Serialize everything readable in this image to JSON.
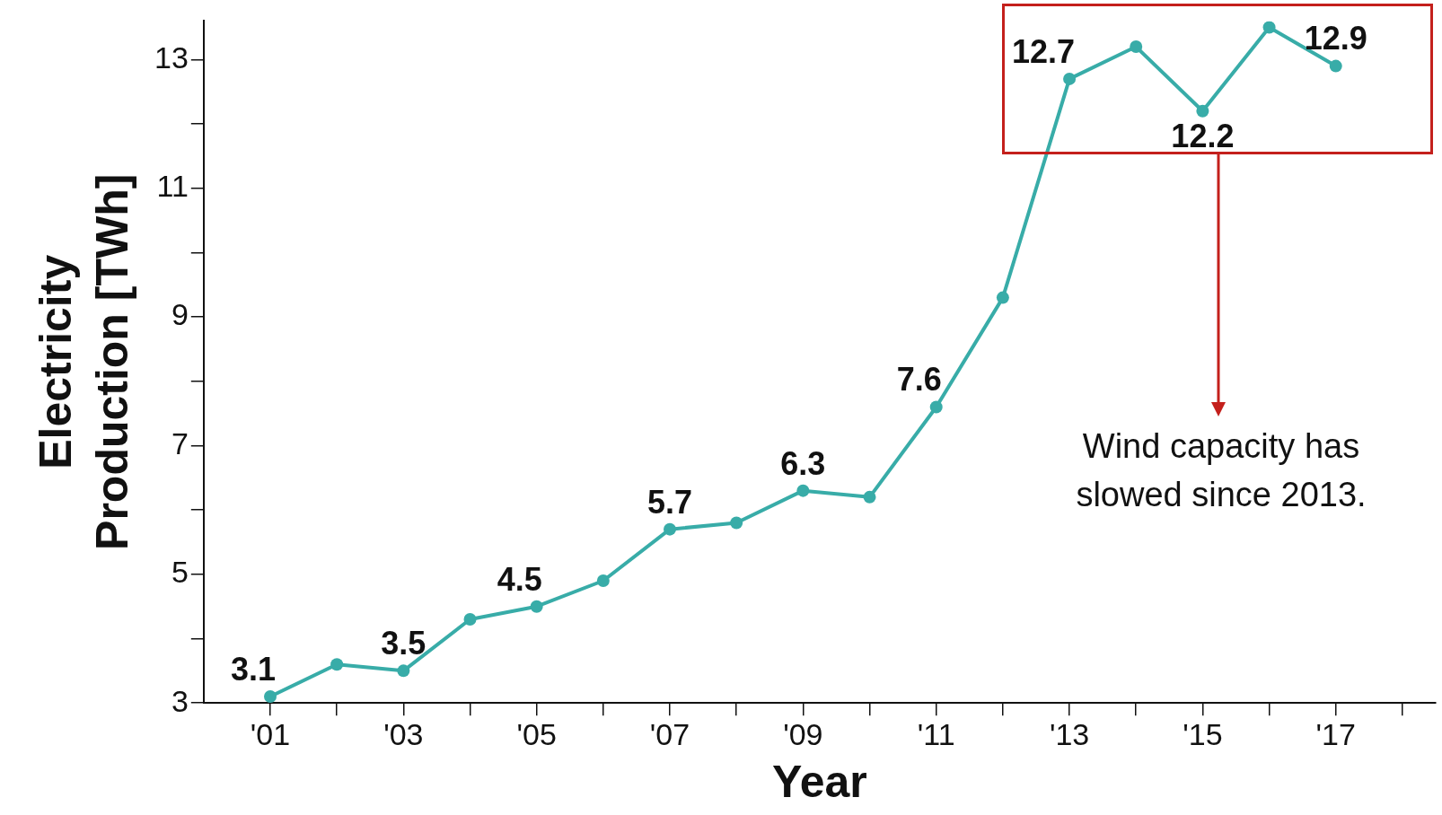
{
  "chart_data": {
    "type": "line",
    "xlabel": "Year",
    "ylabel": "Electricity\nProduction [TWh]",
    "x": [
      2001,
      2002,
      2003,
      2004,
      2005,
      2006,
      2007,
      2008,
      2009,
      2010,
      2011,
      2012,
      2013,
      2014,
      2015,
      2016,
      2017
    ],
    "series": [
      {
        "color": "#38aca8",
        "values": [
          3.1,
          3.6,
          3.5,
          4.3,
          4.5,
          4.9,
          5.7,
          5.8,
          6.3,
          6.2,
          7.6,
          9.3,
          12.7,
          13.2,
          12.2,
          13.5,
          12.9
        ],
        "value_labels": [
          "3.1",
          null,
          "3.5",
          null,
          "4.5",
          null,
          "5.7",
          null,
          "6.3",
          null,
          "7.6",
          null,
          "12.7",
          null,
          "12.2",
          null,
          "12.9"
        ]
      }
    ],
    "xlim": [
      2000,
      2018.5
    ],
    "xticks": [
      {
        "value": 2001,
        "label": "'01"
      },
      {
        "value": 2002,
        "label": null
      },
      {
        "value": 2003,
        "label": "'03"
      },
      {
        "value": 2004,
        "label": null
      },
      {
        "value": 2005,
        "label": "'05"
      },
      {
        "value": 2006,
        "label": null
      },
      {
        "value": 2007,
        "label": "'07"
      },
      {
        "value": 2008,
        "label": null
      },
      {
        "value": 2009,
        "label": "'09"
      },
      {
        "value": 2010,
        "label": null
      },
      {
        "value": 2011,
        "label": "'11"
      },
      {
        "value": 2012,
        "label": null
      },
      {
        "value": 2013,
        "label": "'13"
      },
      {
        "value": 2014,
        "label": null
      },
      {
        "value": 2015,
        "label": "'15"
      },
      {
        "value": 2016,
        "label": null
      },
      {
        "value": 2017,
        "label": "'17"
      },
      {
        "value": 2018,
        "label": null
      }
    ],
    "ylim": [
      3,
      13.6
    ],
    "yticks": [
      3,
      {
        "value": 4,
        "label": null
      },
      5,
      {
        "value": 6,
        "label": null
      },
      7,
      {
        "value": 8,
        "label": null
      },
      9,
      {
        "value": 10,
        "label": null
      },
      11,
      {
        "value": 12,
        "label": null
      },
      13
    ],
    "annotations": [
      "Wind capacity has slowed since 2013."
    ],
    "grid": false,
    "legend": false,
    "marker": "circle",
    "line_style": "solid"
  }
}
